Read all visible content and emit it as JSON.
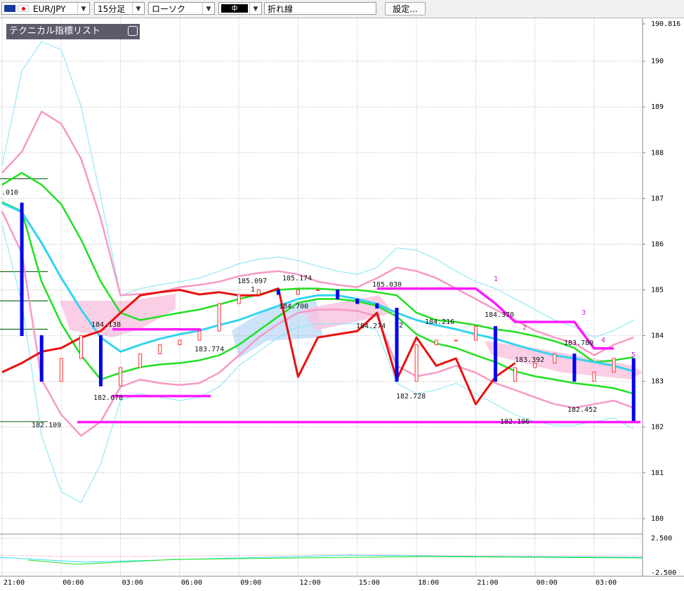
{
  "toolbar": {
    "symbol": "EUR/JPY",
    "timeframe": "15分足",
    "chart_style": "ローソク",
    "line_type": "折れ線",
    "settings": "設定..."
  },
  "indicator_panel": {
    "title": "テクニカル指標リスト"
  },
  "chart_data": {
    "type": "line",
    "categories": [
      "21:00",
      null,
      null,
      "00:00",
      null,
      null,
      "03:00",
      null,
      null,
      "06:00",
      null,
      null,
      "09:00",
      null,
      null,
      "12:00",
      null,
      null,
      "15:00",
      null,
      null,
      "18:00",
      null,
      null,
      "21:00",
      null,
      null,
      "00:00",
      null,
      null,
      "03:00",
      null,
      null
    ],
    "ylim": [
      179.66,
      190.94
    ],
    "yticks": [
      180,
      181,
      182,
      183,
      184,
      185,
      186,
      187,
      188,
      189,
      190,
      {
        "value": 190.816,
        "label": "190.816"
      }
    ],
    "sub_ylim": [
      -3.01,
      3.11
    ],
    "sub_yticks": [
      {
        "value": 2.5,
        "label": "2.500"
      },
      {
        "value": -2.5,
        "label": "-2.500"
      }
    ],
    "grid": true,
    "series": [
      {
        "color": "#7fe6f5",
        "values": [
          187.72,
          189.79,
          190.43,
          190.25,
          189.02,
          187.02,
          184.88,
          185.03,
          185.11,
          185.18,
          185.26,
          185.41,
          185.57,
          185.67,
          185.72,
          185.64,
          185.52,
          185.41,
          185.34,
          185.49,
          185.92,
          185.87,
          185.67,
          185.41,
          185.18,
          185.03,
          184.8,
          184.57,
          184.34,
          184.19,
          183.96,
          184.11,
          184.34
        ]
      },
      {
        "color": "#7fe6f5",
        "values": [
          186.41,
          184.72,
          181.81,
          180.58,
          180.35,
          181.2,
          182.58,
          182.73,
          182.65,
          182.58,
          182.65,
          182.88,
          183.34,
          183.65,
          183.96,
          184.19,
          184.26,
          184.26,
          184.26,
          184.11,
          182.96,
          182.73,
          182.81,
          182.96,
          182.73,
          182.5,
          182.27,
          182.12,
          182.04,
          182.04,
          182.12,
          182.2,
          181.96
        ]
      },
      {
        "color": "#f59ac6",
        "values": [
          187.56,
          188.02,
          188.9,
          188.63,
          187.87,
          186.56,
          184.88,
          184.91,
          184.95,
          185.06,
          185.11,
          185.18,
          185.3,
          185.37,
          185.41,
          185.34,
          185.18,
          185.11,
          185.06,
          185.26,
          185.49,
          185.41,
          185.26,
          185.03,
          184.8,
          184.57,
          184.34,
          184.11,
          183.96,
          183.83,
          183.57,
          183.8,
          183.96
        ]
      },
      {
        "color": "#f59ac6",
        "values": [
          186.72,
          185.8,
          183.04,
          182.27,
          181.81,
          182.12,
          182.88,
          183.04,
          182.96,
          182.92,
          182.96,
          183.19,
          183.57,
          183.96,
          184.26,
          184.5,
          184.57,
          184.57,
          184.54,
          184.42,
          183.34,
          183.11,
          183.19,
          183.34,
          183.19,
          182.96,
          182.81,
          182.65,
          182.5,
          182.42,
          182.5,
          182.58,
          182.42
        ]
      },
      {
        "color": "#20e020",
        "values": [
          187.3,
          187.56,
          187.3,
          186.87,
          186.1,
          185.18,
          184.5,
          184.34,
          184.42,
          184.5,
          184.57,
          184.68,
          184.8,
          184.9,
          185.0,
          185.03,
          185.03,
          185.0,
          185.0,
          184.95,
          184.88,
          184.5,
          184.34,
          184.3,
          184.23,
          184.14,
          184.08,
          183.99,
          183.88,
          183.73,
          183.42,
          183.46,
          183.53
        ]
      },
      {
        "color": "#20e020",
        "values": [
          186.92,
          186.72,
          185.18,
          184.26,
          183.57,
          183.04,
          183.19,
          183.31,
          183.37,
          183.4,
          183.46,
          183.57,
          183.8,
          184.11,
          184.42,
          184.72,
          184.8,
          184.8,
          184.75,
          184.65,
          184.42,
          184.03,
          183.83,
          183.73,
          183.57,
          183.42,
          183.22,
          183.11,
          183.04,
          182.96,
          182.91,
          182.85,
          182.73
        ]
      },
      {
        "color": "#33d4ee",
        "values": [
          186.9,
          186.7,
          186.03,
          185.26,
          184.57,
          183.96,
          183.65,
          183.8,
          183.93,
          184.03,
          184.11,
          184.23,
          184.34,
          184.5,
          184.65,
          184.8,
          184.88,
          184.88,
          184.8,
          184.69,
          184.5,
          184.34,
          184.23,
          184.14,
          184.03,
          183.93,
          183.8,
          183.68,
          183.57,
          183.5,
          183.42,
          183.34,
          183.22
        ]
      },
      {
        "color": "#e8100c",
        "values": [
          183.2,
          183.4,
          183.65,
          183.73,
          183.96,
          184.1,
          184.5,
          184.88,
          184.95,
          185.0,
          184.9,
          184.95,
          184.88,
          184.88,
          185.03,
          183.1,
          183.96,
          184.03,
          184.1,
          184.5,
          183.04,
          183.96,
          183.34,
          183.5,
          182.5,
          183.1,
          183.4,
          null,
          null,
          null,
          null,
          null,
          null
        ]
      },
      {
        "color": "#ff1aff",
        "values": [
          null,
          null,
          null,
          null,
          null,
          null,
          null,
          null,
          null,
          null,
          null,
          null,
          null,
          null,
          null,
          null,
          null,
          null,
          null,
          185.03,
          185.03,
          185.03,
          185.03,
          185.03,
          185.03,
          184.7,
          184.3,
          184.3,
          184.3,
          184.3,
          183.72,
          183.72,
          null
        ]
      }
    ],
    "candles": {
      "up_color": "#ff3030",
      "down_color": "#0000ee",
      "values": [
        186.9,
        184.0,
        183.0,
        183.5,
        184.0,
        182.9,
        183.3,
        183.6,
        183.8,
        183.9,
        184.1,
        184.7,
        184.9,
        185.0,
        184.9,
        185.0,
        185.0,
        184.8,
        184.7,
        184.6,
        183.0,
        183.8,
        183.9,
        183.9,
        184.2,
        183.0,
        183.3,
        183.4,
        183.6,
        183.0,
        183.2,
        183.5,
        182.1
      ]
    },
    "levels": {
      "color": "#ff1aff",
      "values": [
        184.138,
        182.678,
        182.109
      ]
    },
    "marker_levels": {
      "color": "#1f6b1f",
      "values": [
        187.43,
        185.4,
        184.76,
        184.14,
        182.12
      ]
    },
    "annotations": [
      {
        "label": ".010"
      },
      {
        "label": "184.138",
        "value": 184.138
      },
      {
        "label": "182.678",
        "value": 182.678
      },
      {
        "label": "182.109",
        "value": 182.109
      },
      {
        "label": "185.097",
        "value": 185.097
      },
      {
        "label": "185.174",
        "value": 185.174
      },
      {
        "label": "184.700",
        "value": 184.7
      },
      {
        "label": "183.774",
        "value": 183.774
      },
      {
        "label": "185.030",
        "value": 185.03
      },
      {
        "label": "184.274",
        "value": 184.274
      },
      {
        "label": "182.728",
        "value": 182.728
      },
      {
        "label": "184.216",
        "value": 184.216
      },
      {
        "label": "184.370",
        "value": 184.37
      },
      {
        "label": "182.196",
        "value": 182.196
      },
      {
        "label": "183.392",
        "value": 183.392
      },
      {
        "label": "183.780",
        "value": 183.78
      },
      {
        "label": "182.452",
        "value": 182.452
      }
    ],
    "wave_labels": [
      "1",
      "2",
      "1",
      "2",
      "3",
      "4",
      "5"
    ]
  }
}
